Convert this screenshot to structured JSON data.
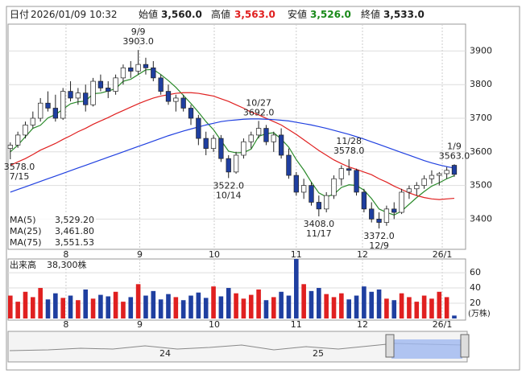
{
  "header": {
    "date_label": "日付",
    "date": "2026/01/09 10:32",
    "open_label": "始値",
    "open": "3,560.0",
    "high_label": "高値",
    "high": "3,563.0",
    "low_label": "安値",
    "low": "3,526.0",
    "close_label": "終値",
    "close": "3,533.0"
  },
  "chart_data": [
    {
      "type": "candlestick",
      "xlim": [
        -0.3,
        60.5
      ],
      "ylim": [
        3310,
        3980
      ],
      "yticks": [
        3400,
        3500,
        3600,
        3700,
        3800,
        3900
      ],
      "grid": true,
      "xticks": [
        {
          "value": 7.4,
          "label": "8"
        },
        {
          "value": 17.2,
          "label": "9"
        },
        {
          "value": 27.1,
          "label": "10"
        },
        {
          "value": 38,
          "label": "11"
        },
        {
          "value": 46.8,
          "label": "12"
        },
        {
          "value": 57.4,
          "label": "26/1"
        }
      ],
      "up_color": "#ffffff",
      "down_color": "#1f3fa0",
      "open": [
        3610,
        3620,
        3650,
        3680,
        3700,
        3745,
        3730,
        3700,
        3780,
        3760,
        3775,
        3740,
        3810,
        3790,
        3780,
        3820,
        3850,
        3840,
        3860,
        3850,
        3820,
        3780,
        3750,
        3760,
        3730,
        3700,
        3640,
        3610,
        3640,
        3580,
        3540,
        3590,
        3630,
        3650,
        3670,
        3630,
        3650,
        3590,
        3530,
        3480,
        3500,
        3450,
        3430,
        3470,
        3520,
        3550,
        3545,
        3480,
        3430,
        3400,
        3390,
        3430,
        3420,
        3480,
        3490,
        3500,
        3520,
        3530,
        3535,
        3560
      ],
      "high": [
        3628,
        3660,
        3690,
        3720,
        3760,
        3780,
        3770,
        3790,
        3810,
        3790,
        3800,
        3820,
        3830,
        3810,
        3830,
        3860,
        3870,
        3903,
        3880,
        3870,
        3830,
        3800,
        3770,
        3770,
        3740,
        3710,
        3660,
        3650,
        3650,
        3590,
        3600,
        3640,
        3660,
        3692,
        3680,
        3660,
        3670,
        3610,
        3540,
        3520,
        3510,
        3470,
        3480,
        3530,
        3560,
        3578,
        3550,
        3490,
        3450,
        3420,
        3440,
        3450,
        3490,
        3500,
        3510,
        3530,
        3545,
        3540,
        3555,
        3563
      ],
      "low": [
        3578,
        3612,
        3640,
        3670,
        3690,
        3720,
        3690,
        3695,
        3750,
        3740,
        3720,
        3735,
        3780,
        3760,
        3770,
        3800,
        3820,
        3830,
        3830,
        3810,
        3770,
        3740,
        3720,
        3720,
        3680,
        3620,
        3590,
        3600,
        3570,
        3522,
        3535,
        3580,
        3610,
        3640,
        3620,
        3600,
        3580,
        3520,
        3470,
        3460,
        3440,
        3408,
        3420,
        3460,
        3500,
        3530,
        3470,
        3420,
        3390,
        3372,
        3380,
        3400,
        3415,
        3460,
        3470,
        3490,
        3505,
        3500,
        3520,
        3526
      ],
      "close": [
        3620,
        3650,
        3680,
        3700,
        3745,
        3730,
        3700,
        3780,
        3760,
        3775,
        3740,
        3810,
        3790,
        3780,
        3820,
        3850,
        3840,
        3860,
        3850,
        3820,
        3780,
        3750,
        3760,
        3730,
        3700,
        3640,
        3610,
        3640,
        3580,
        3540,
        3590,
        3630,
        3650,
        3670,
        3630,
        3650,
        3590,
        3530,
        3480,
        3500,
        3450,
        3430,
        3470,
        3520,
        3550,
        3545,
        3480,
        3430,
        3400,
        3390,
        3430,
        3420,
        3480,
        3490,
        3500,
        3520,
        3530,
        3535,
        3545,
        3533
      ],
      "series": [
        {
          "name": "MA(5)",
          "color": "#2a8a2a",
          "legend_label": "3,529.20",
          "values": [
            3600,
            3620,
            3645,
            3670,
            3679,
            3701,
            3711,
            3727,
            3743,
            3749,
            3751,
            3773,
            3775,
            3781,
            3788,
            3810,
            3816,
            3830,
            3844,
            3845,
            3830,
            3812,
            3792,
            3768,
            3744,
            3718,
            3690,
            3666,
            3634,
            3602,
            3597,
            3598,
            3608,
            3646,
            3654,
            3657,
            3638,
            3614,
            3577,
            3546,
            3510,
            3478,
            3466,
            3474,
            3494,
            3502,
            3500,
            3486,
            3461,
            3430,
            3420,
            3412,
            3424,
            3444,
            3464,
            3482,
            3498,
            3508,
            3520,
            3529.2
          ]
        },
        {
          "name": "MA(25)",
          "color": "#e02020",
          "legend_label": "3,461.80",
          "values": [
            3560,
            3570,
            3580,
            3592,
            3605,
            3615,
            3625,
            3637,
            3648,
            3660,
            3670,
            3682,
            3692,
            3702,
            3713,
            3723,
            3733,
            3743,
            3752,
            3760,
            3766,
            3770,
            3774,
            3776,
            3776,
            3774,
            3770,
            3766,
            3758,
            3750,
            3740,
            3730,
            3718,
            3710,
            3700,
            3690,
            3680,
            3666,
            3652,
            3636,
            3620,
            3604,
            3590,
            3576,
            3565,
            3555,
            3548,
            3540,
            3532,
            3520,
            3510,
            3498,
            3488,
            3478,
            3470,
            3464,
            3460,
            3458,
            3460,
            3461.8
          ]
        },
        {
          "name": "MA(75)",
          "color": "#2040e0",
          "legend_label": "3,551.53",
          "values": [
            3480,
            3488,
            3496,
            3504,
            3512,
            3520,
            3528,
            3536,
            3544,
            3552,
            3560,
            3568,
            3576,
            3584,
            3592,
            3600,
            3608,
            3616,
            3624,
            3632,
            3640,
            3648,
            3655,
            3662,
            3668,
            3674,
            3680,
            3685,
            3690,
            3693,
            3695,
            3697,
            3698,
            3698,
            3697,
            3696,
            3694,
            3692,
            3688,
            3684,
            3680,
            3675,
            3670,
            3664,
            3658,
            3652,
            3645,
            3638,
            3630,
            3622,
            3614,
            3606,
            3598,
            3590,
            3582,
            3574,
            3567,
            3561,
            3556,
            3551.53
          ]
        }
      ],
      "annotations": [
        {
          "x": 0,
          "value": 3578,
          "label": "3578.0",
          "date": "7/15"
        },
        {
          "x": 17,
          "value": 3903,
          "label": "3903.0",
          "date": "9/9"
        },
        {
          "x": 29,
          "value": 3522,
          "label": "3522.0",
          "date": "10/14"
        },
        {
          "x": 33,
          "value": 3692,
          "label": "3692.0",
          "date": "10/27"
        },
        {
          "x": 41,
          "value": 3408,
          "label": "3408.0",
          "date": "11/17"
        },
        {
          "x": 45,
          "value": 3578,
          "label": "3578.0",
          "date": "11/28"
        },
        {
          "x": 49,
          "value": 3372,
          "label": "3372.0",
          "date": "12/9"
        },
        {
          "x": 59,
          "value": 3563,
          "label": "3563.0",
          "date": "1/9"
        }
      ]
    },
    {
      "type": "bar",
      "title": "出来高",
      "unit": "(万株)",
      "last_label": "38,300株",
      "ylim": [
        0,
        78
      ],
      "yticks": [
        20,
        40,
        60
      ],
      "up_color": "#e02020",
      "down_color": "#1f3fa0",
      "values": [
        30,
        22,
        35,
        28,
        40,
        25,
        33,
        27,
        30,
        24,
        38,
        26,
        31,
        29,
        35,
        22,
        28,
        45,
        30,
        36,
        25,
        32,
        28,
        24,
        30,
        34,
        27,
        42,
        29,
        40,
        33,
        26,
        31,
        38,
        24,
        28,
        35,
        30,
        78,
        45,
        36,
        40,
        32,
        28,
        33,
        25,
        30,
        42,
        35,
        38,
        26,
        24,
        33,
        28,
        22,
        30,
        26,
        35,
        28,
        3.83
      ]
    }
  ],
  "navigator": {
    "labels": [
      "24",
      "25"
    ]
  }
}
